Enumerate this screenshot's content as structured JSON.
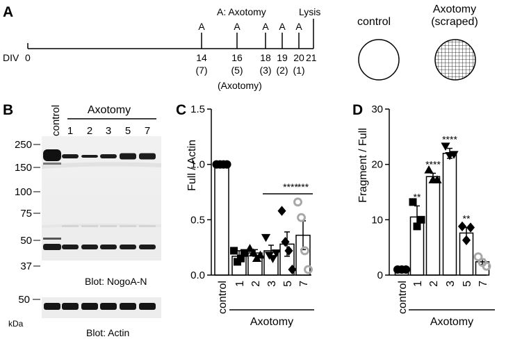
{
  "panels": {
    "A": "A",
    "B": "B",
    "C": "C",
    "D": "D"
  },
  "panel_a": {
    "axotomy_legend": "A: Axotomy",
    "lysis_label": "Lysis",
    "div_label": "DIV",
    "start_day": "0",
    "end_day": "21",
    "marker": "A",
    "timepoints": [
      {
        "day": "14",
        "sub": "(7)",
        "x": 290
      },
      {
        "day": "16",
        "sub": "(5)",
        "x": 341
      },
      {
        "day": "18",
        "sub": "(3)",
        "x": 382
      },
      {
        "day": "19",
        "sub": "(2)",
        "x": 406
      },
      {
        "day": "20",
        "sub": "(1)",
        "x": 430
      }
    ],
    "axotomy_note": "(Axotomy)",
    "control_label": "control",
    "scraped_label_1": "Axotomy",
    "scraped_label_2": "(scraped)"
  },
  "panel_b": {
    "control_label": "control",
    "group_label": "Axotomy",
    "lanes": [
      "1",
      "2",
      "3",
      "5",
      "7"
    ],
    "mw_markers": [
      "250",
      "150",
      "100",
      "75",
      "50",
      "37"
    ],
    "blot1_label": "Blot: NogoA-N",
    "blot2_marker": "50",
    "kda_label": "kDa",
    "blot2_label": "Blot: Actin"
  },
  "chart_data": [
    {
      "type": "bar",
      "title": "C",
      "ylabel": "Full / Actin",
      "ylim": [
        0,
        1.5
      ],
      "yticks": [
        "0.0",
        "0.5",
        "1.0",
        "1.5"
      ],
      "categories": [
        "control",
        "1",
        "2",
        "3",
        "5",
        "7"
      ],
      "group_label": "Axotomy",
      "values": [
        1.0,
        0.17,
        0.2,
        0.22,
        0.28,
        0.36
      ],
      "errors": [
        0,
        0.05,
        0.03,
        0.05,
        0.11,
        0.13
      ],
      "points": [
        [
          1.0,
          1.0,
          1.0,
          1.0
        ],
        [
          0.22,
          0.12,
          0.15,
          0.2
        ],
        [
          0.24,
          0.2,
          0.15,
          0.18
        ],
        [
          0.34,
          0.18,
          0.15,
          0.2
        ],
        [
          0.58,
          0.3,
          0.22,
          0.05
        ],
        [
          0.66,
          0.52,
          0.22,
          0.05
        ]
      ],
      "annotations": {
        "bracket": "****",
        "bar7": "***"
      }
    },
    {
      "type": "bar",
      "title": "D",
      "ylabel": "Fragment / Full",
      "ylim": [
        0,
        30
      ],
      "yticks": [
        "0",
        "10",
        "20",
        "30"
      ],
      "categories": [
        "control",
        "1",
        "2",
        "3",
        "5",
        "7"
      ],
      "group_label": "Axotomy",
      "values": [
        1.0,
        10.5,
        17.8,
        22.0,
        7.6,
        2.4
      ],
      "errors": [
        0,
        2.0,
        0.6,
        0.9,
        1.0,
        0.5
      ],
      "points": [
        [
          1.0,
          1.0,
          1.0
        ],
        [
          13.2,
          8.8,
          10.0
        ],
        [
          19.0,
          17.2,
          17.2
        ],
        [
          23.3,
          21.6,
          21.8
        ],
        [
          8.8,
          6.3,
          8.6
        ],
        [
          3.3,
          2.3,
          1.6
        ]
      ],
      "annotations": [
        "",
        "**",
        "****",
        "****",
        "**",
        ""
      ]
    }
  ]
}
